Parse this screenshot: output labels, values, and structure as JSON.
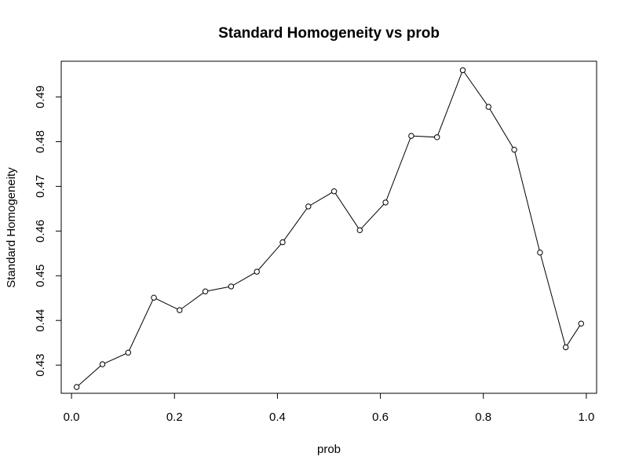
{
  "chart_data": {
    "type": "line",
    "title": "Standard Homogeneity vs prob",
    "xlabel": "prob",
    "ylabel": "Standard Homogeneity",
    "xlim": [
      -0.02,
      1.02
    ],
    "ylim": [
      0.4237,
      0.498
    ],
    "xticks": [
      0.0,
      0.2,
      0.4,
      0.6,
      0.8,
      1.0
    ],
    "xtick_labels": [
      "0.0",
      "0.2",
      "0.4",
      "0.6",
      "0.8",
      "1.0"
    ],
    "yticks": [
      0.43,
      0.44,
      0.45,
      0.46,
      0.47,
      0.48,
      0.49
    ],
    "ytick_labels": [
      "0.43",
      "0.44",
      "0.45",
      "0.46",
      "0.47",
      "0.48",
      "0.49"
    ],
    "grid": false,
    "markers": "open-circle",
    "x": [
      0.01,
      0.06,
      0.11,
      0.16,
      0.21,
      0.26,
      0.31,
      0.36,
      0.41,
      0.46,
      0.51,
      0.56,
      0.61,
      0.66,
      0.71,
      0.76,
      0.81,
      0.86,
      0.91,
      0.96,
      0.99
    ],
    "y": [
      0.4251,
      0.4302,
      0.4328,
      0.4451,
      0.4423,
      0.4465,
      0.4476,
      0.4509,
      0.4575,
      0.4655,
      0.4689,
      0.4602,
      0.4664,
      0.4813,
      0.481,
      0.496,
      0.4878,
      0.4782,
      0.4552,
      0.434,
      0.4393
    ]
  }
}
